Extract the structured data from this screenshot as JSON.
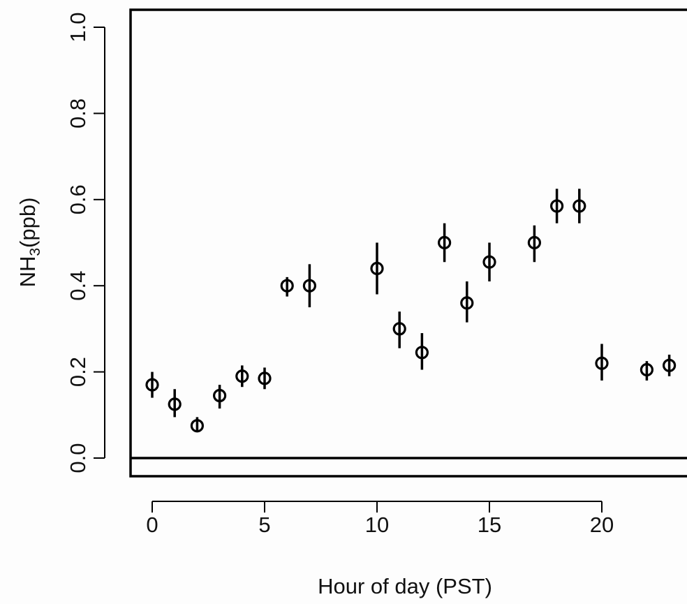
{
  "chart_data": {
    "type": "scatter",
    "xlabel": "Hour of day (PST)",
    "ylabel": {
      "prefix": "NH",
      "subscript": "3",
      "suffix": "(ppb)"
    },
    "xlim": [
      -1,
      24
    ],
    "ylim": [
      -0.04,
      1.04
    ],
    "x_ticks": [
      0,
      5,
      10,
      15,
      20
    ],
    "x_tick_labels": [
      "0",
      "5",
      "10",
      "15",
      "20"
    ],
    "y_ticks": [
      0.0,
      0.2,
      0.4,
      0.6,
      0.8,
      1.0
    ],
    "y_tick_labels": [
      "0.0",
      "0.2",
      "0.4",
      "0.6",
      "0.8",
      "1.0"
    ],
    "reference_line_y": 0.0,
    "grid": false,
    "marker": "open-circle",
    "error_bars": "vertical",
    "series": [
      {
        "points": [
          {
            "x": 0,
            "y": 0.17,
            "low": 0.14,
            "high": 0.2
          },
          {
            "x": 1,
            "y": 0.125,
            "low": 0.095,
            "high": 0.16
          },
          {
            "x": 2,
            "y": 0.075,
            "low": 0.06,
            "high": 0.095
          },
          {
            "x": 3,
            "y": 0.145,
            "low": 0.115,
            "high": 0.17
          },
          {
            "x": 4,
            "y": 0.19,
            "low": 0.165,
            "high": 0.215
          },
          {
            "x": 5,
            "y": 0.185,
            "low": 0.16,
            "high": 0.21
          },
          {
            "x": 6,
            "y": 0.4,
            "low": 0.375,
            "high": 0.42
          },
          {
            "x": 7,
            "y": 0.4,
            "low": 0.35,
            "high": 0.45
          },
          {
            "x": 10,
            "y": 0.44,
            "low": 0.38,
            "high": 0.5
          },
          {
            "x": 11,
            "y": 0.3,
            "low": 0.255,
            "high": 0.34
          },
          {
            "x": 12,
            "y": 0.245,
            "low": 0.205,
            "high": 0.29
          },
          {
            "x": 13,
            "y": 0.5,
            "low": 0.455,
            "high": 0.545
          },
          {
            "x": 14,
            "y": 0.36,
            "low": 0.315,
            "high": 0.41
          },
          {
            "x": 15,
            "y": 0.455,
            "low": 0.41,
            "high": 0.5
          },
          {
            "x": 17,
            "y": 0.5,
            "low": 0.455,
            "high": 0.54
          },
          {
            "x": 18,
            "y": 0.585,
            "low": 0.545,
            "high": 0.625
          },
          {
            "x": 19,
            "y": 0.585,
            "low": 0.545,
            "high": 0.625
          },
          {
            "x": 20,
            "y": 0.22,
            "low": 0.18,
            "high": 0.265
          },
          {
            "x": 22,
            "y": 0.205,
            "low": 0.18,
            "high": 0.225
          },
          {
            "x": 23,
            "y": 0.215,
            "low": 0.19,
            "high": 0.24
          }
        ]
      }
    ]
  }
}
